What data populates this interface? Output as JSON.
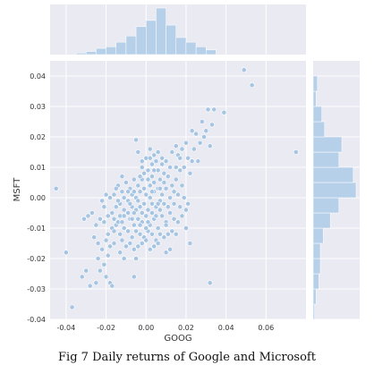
{
  "caption": "Fig 7 Daily returns of Google and Microsoft",
  "colors": {
    "panel": "#eaeaf2",
    "grid": "#ffffff",
    "marker": "#a6c5e2",
    "marker_edge": "#ffffff",
    "bar": "#b7d0ea",
    "tick_text": "#333333"
  },
  "chart_data": {
    "type": "scatter",
    "style": "seaborn jointplot with marginal histograms",
    "xlabel": "GOOG",
    "ylabel": "MSFT",
    "xlim": [
      -0.048,
      0.08
    ],
    "ylim": [
      -0.04,
      0.045
    ],
    "x_ticks": [
      -0.04,
      -0.02,
      0.0,
      0.02,
      0.04,
      0.06
    ],
    "x_tick_labels": [
      "-0.04",
      "-0.02",
      "0.00",
      "0.02",
      "0.04",
      "0.06"
    ],
    "y_ticks": [
      -0.04,
      -0.03,
      -0.02,
      -0.01,
      0.0,
      0.01,
      0.02,
      0.03,
      0.04
    ],
    "y_tick_labels": [
      "-0.04",
      "-0.03",
      "-0.02",
      "-0.01",
      "0.00",
      "0.01",
      "0.02",
      "0.03",
      "0.04"
    ],
    "grid": true,
    "points": [
      [
        0.049,
        0.042
      ],
      [
        0.053,
        0.037
      ],
      [
        0.075,
        0.015
      ],
      [
        -0.045,
        0.003
      ],
      [
        -0.04,
        -0.018
      ],
      [
        -0.037,
        -0.036
      ],
      [
        0.031,
        0.029
      ],
      [
        0.034,
        0.029
      ],
      [
        0.039,
        0.028
      ],
      [
        0.028,
        0.025
      ],
      [
        0.027,
        0.018
      ],
      [
        0.032,
        0.017
      ],
      [
        0.029,
        0.02
      ],
      [
        0.023,
        0.022
      ],
      [
        0.025,
        0.021
      ],
      [
        0.033,
        0.024
      ],
      [
        0.02,
        0.018
      ],
      [
        0.018,
        0.016
      ],
      [
        0.015,
        0.017
      ],
      [
        0.013,
        0.015
      ],
      [
        0.016,
        0.014
      ],
      [
        0.021,
        0.013
      ],
      [
        0.023,
        0.012
      ],
      [
        0.019,
        0.01
      ],
      [
        0.017,
        0.009
      ],
      [
        0.022,
        0.008
      ],
      [
        -0.005,
        0.019
      ],
      [
        -0.004,
        0.015
      ],
      [
        0.002,
        0.016
      ],
      [
        0.004,
        0.014
      ],
      [
        0.006,
        0.015
      ],
      [
        0.008,
        0.013
      ],
      [
        0.01,
        0.012
      ],
      [
        0.012,
        0.01
      ],
      [
        0.009,
        0.008
      ],
      [
        0.007,
        0.006
      ],
      [
        0.005,
        0.012
      ],
      [
        0.003,
        0.011
      ],
      [
        0.0,
        0.013
      ],
      [
        -0.002,
        0.01
      ],
      [
        -0.001,
        0.008
      ],
      [
        0.001,
        0.006
      ],
      [
        0.003,
        0.007
      ],
      [
        0.006,
        0.009
      ],
      [
        0.011,
        0.007
      ],
      [
        0.013,
        0.004
      ],
      [
        0.015,
        0.006
      ],
      [
        0.014,
        0.002
      ],
      [
        0.016,
        0.001
      ],
      [
        0.018,
        0.004
      ],
      [
        0.017,
        -0.003
      ],
      [
        0.02,
        -0.004
      ],
      [
        0.019,
        0.0
      ],
      [
        0.018,
        -0.006
      ],
      [
        0.016,
        -0.008
      ],
      [
        0.021,
        -0.002
      ],
      [
        0.02,
        -0.01
      ],
      [
        0.022,
        -0.015
      ],
      [
        0.015,
        -0.012
      ],
      [
        -0.004,
        0.004
      ],
      [
        -0.006,
        0.006
      ],
      [
        -0.008,
        0.003
      ],
      [
        -0.01,
        0.005
      ],
      [
        -0.012,
        0.002
      ],
      [
        -0.014,
        0.004
      ],
      [
        -0.016,
        0.001
      ],
      [
        -0.018,
        0.0
      ],
      [
        -0.011,
        0.0
      ],
      [
        -0.009,
        -0.001
      ],
      [
        -0.007,
        0.001
      ],
      [
        -0.005,
        0.0
      ],
      [
        -0.003,
        0.002
      ],
      [
        -0.001,
        0.003
      ],
      [
        0.0,
        0.001
      ],
      [
        0.002,
        0.004
      ],
      [
        0.004,
        0.002
      ],
      [
        0.006,
        0.003
      ],
      [
        0.008,
        0.001
      ],
      [
        0.01,
        0.003
      ],
      [
        0.012,
        0.0
      ],
      [
        0.009,
        -0.002
      ],
      [
        0.007,
        -0.001
      ],
      [
        0.005,
        -0.003
      ],
      [
        0.003,
        -0.002
      ],
      [
        0.001,
        -0.004
      ],
      [
        -0.001,
        -0.002
      ],
      [
        -0.003,
        -0.003
      ],
      [
        -0.005,
        -0.004
      ],
      [
        -0.007,
        -0.003
      ],
      [
        -0.009,
        -0.005
      ],
      [
        -0.011,
        -0.004
      ],
      [
        -0.013,
        -0.006
      ],
      [
        -0.015,
        -0.003
      ],
      [
        -0.017,
        -0.005
      ],
      [
        -0.019,
        -0.006
      ],
      [
        -0.021,
        -0.003
      ],
      [
        -0.013,
        -0.002
      ],
      [
        -0.008,
        -0.007
      ],
      [
        -0.006,
        -0.009
      ],
      [
        -0.004,
        -0.007
      ],
      [
        -0.002,
        -0.008
      ],
      [
        0.0,
        -0.006
      ],
      [
        0.002,
        -0.009
      ],
      [
        0.004,
        -0.007
      ],
      [
        0.006,
        -0.01
      ],
      [
        0.008,
        -0.006
      ],
      [
        0.01,
        -0.008
      ],
      [
        0.012,
        -0.005
      ],
      [
        0.013,
        -0.011
      ],
      [
        0.011,
        -0.012
      ],
      [
        0.009,
        -0.013
      ],
      [
        0.007,
        -0.012
      ],
      [
        0.005,
        -0.014
      ],
      [
        0.003,
        -0.012
      ],
      [
        0.001,
        -0.011
      ],
      [
        -0.001,
        -0.013
      ],
      [
        -0.003,
        -0.012
      ],
      [
        -0.005,
        -0.011
      ],
      [
        -0.007,
        -0.013
      ],
      [
        -0.009,
        -0.011
      ],
      [
        -0.011,
        -0.01
      ],
      [
        -0.013,
        -0.012
      ],
      [
        -0.015,
        -0.009
      ],
      [
        -0.017,
        -0.01
      ],
      [
        -0.019,
        -0.012
      ],
      [
        -0.021,
        -0.008
      ],
      [
        -0.023,
        -0.007
      ],
      [
        -0.025,
        -0.009
      ],
      [
        -0.027,
        -0.005
      ],
      [
        -0.029,
        -0.006
      ],
      [
        -0.031,
        -0.007
      ],
      [
        -0.02,
        -0.014
      ],
      [
        -0.018,
        -0.016
      ],
      [
        -0.016,
        -0.015
      ],
      [
        -0.012,
        -0.014
      ],
      [
        -0.01,
        -0.016
      ],
      [
        -0.008,
        -0.015
      ],
      [
        -0.006,
        -0.017
      ],
      [
        -0.004,
        -0.016
      ],
      [
        -0.002,
        -0.015
      ],
      [
        0.0,
        -0.014
      ],
      [
        0.002,
        -0.017
      ],
      [
        0.004,
        -0.016
      ],
      [
        0.006,
        -0.015
      ],
      [
        -0.011,
        -0.006
      ],
      [
        -0.014,
        -0.008
      ],
      [
        -0.003,
        -0.009
      ],
      [
        0.001,
        -0.008
      ],
      [
        0.003,
        -0.005
      ],
      [
        -0.002,
        -0.005
      ],
      [
        0.005,
        -0.006
      ],
      [
        0.007,
        -0.004
      ],
      [
        -0.008,
        -0.002
      ],
      [
        -0.012,
        -0.008
      ],
      [
        -0.016,
        -0.007
      ],
      [
        -0.006,
        -0.005
      ],
      [
        0.011,
        -0.003
      ],
      [
        0.014,
        -0.002
      ],
      [
        0.009,
        0.005
      ],
      [
        0.004,
        0.005
      ],
      [
        -0.002,
        0.006
      ],
      [
        -0.006,
        0.002
      ],
      [
        -0.02,
        0.001
      ],
      [
        -0.022,
        -0.001
      ],
      [
        -0.015,
        0.003
      ],
      [
        0.001,
        0.009
      ],
      [
        0.003,
        0.002
      ],
      [
        0.008,
        0.011
      ],
      [
        -0.022,
        -0.017
      ],
      [
        -0.024,
        -0.02
      ],
      [
        -0.021,
        -0.022
      ],
      [
        -0.019,
        -0.019
      ],
      [
        -0.023,
        -0.024
      ],
      [
        -0.02,
        -0.026
      ],
      [
        -0.018,
        -0.028
      ],
      [
        -0.025,
        -0.028
      ],
      [
        -0.03,
        -0.024
      ],
      [
        -0.032,
        -0.026
      ],
      [
        -0.028,
        -0.029
      ],
      [
        -0.017,
        -0.029
      ],
      [
        0.032,
        -0.028
      ],
      [
        -0.006,
        -0.026
      ],
      [
        -0.011,
        -0.02
      ],
      [
        -0.013,
        -0.018
      ],
      [
        0.01,
        -0.018
      ],
      [
        0.012,
        -0.017
      ],
      [
        -0.005,
        -0.02
      ],
      [
        -0.002,
        0.012
      ],
      [
        -0.003,
        0.007
      ],
      [
        0.002,
        0.013
      ],
      [
        0.007,
        0.003
      ],
      [
        -0.024,
        -0.015
      ],
      [
        -0.026,
        -0.013
      ],
      [
        0.015,
        0.01
      ],
      [
        0.017,
        0.013
      ],
      [
        0.026,
        0.012
      ],
      [
        0.024,
        0.016
      ],
      [
        0.03,
        0.022
      ],
      [
        -0.009,
        0.002
      ],
      [
        -0.014,
        -0.001
      ],
      [
        -0.007,
        -0.007
      ],
      [
        0.0,
        -0.01
      ],
      [
        0.006,
        -0.002
      ],
      [
        0.01,
        -0.009
      ],
      [
        0.014,
        -0.007
      ],
      [
        -0.004,
        -0.001
      ],
      [
        0.002,
        0.0
      ],
      [
        0.004,
        0.009
      ],
      [
        -0.012,
        0.007
      ],
      [
        -0.016,
        -0.011
      ]
    ],
    "x_histogram": {
      "edges": [
        -0.045,
        -0.04,
        -0.035,
        -0.03,
        -0.025,
        -0.02,
        -0.015,
        -0.01,
        -0.005,
        0.0,
        0.005,
        0.01,
        0.015,
        0.02,
        0.025,
        0.03,
        0.035
      ],
      "counts": [
        0,
        0,
        1,
        2,
        4,
        5,
        8,
        12,
        18,
        22,
        30,
        19,
        11,
        8,
        5,
        3
      ]
    },
    "y_histogram": {
      "edges": [
        -0.04,
        -0.035,
        -0.03,
        -0.025,
        -0.02,
        -0.015,
        -0.01,
        -0.005,
        0.0,
        0.005,
        0.01,
        0.015,
        0.02,
        0.025,
        0.03,
        0.035,
        0.04
      ],
      "counts": [
        1,
        2,
        4,
        5,
        5,
        7,
        12,
        18,
        30,
        28,
        18,
        20,
        8,
        6,
        2,
        3
      ]
    }
  }
}
